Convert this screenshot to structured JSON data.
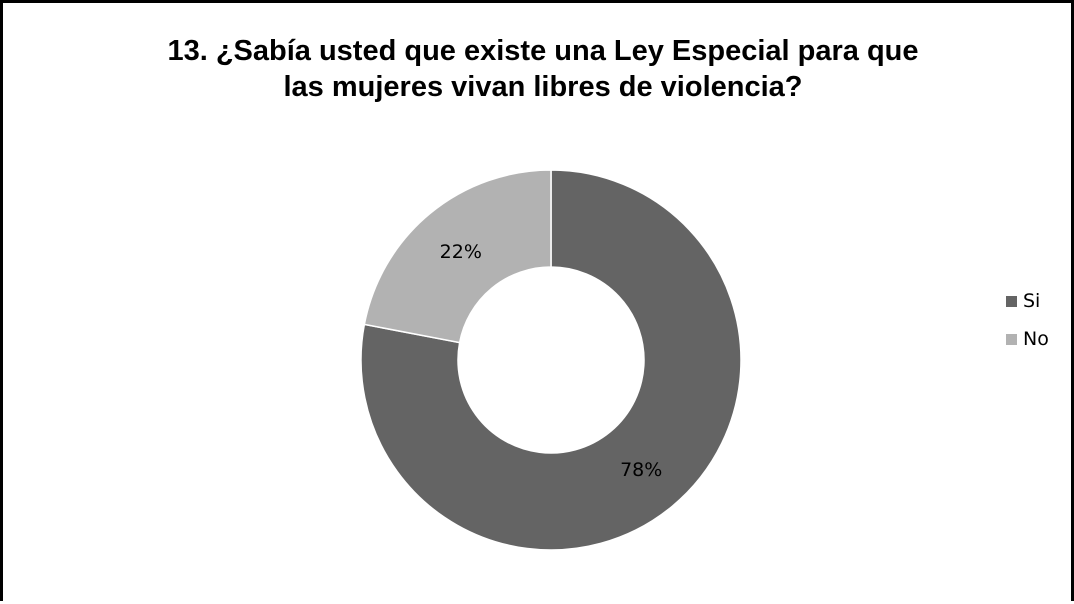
{
  "colors": {
    "si": "#646464",
    "no": "#b2b2b2",
    "border": "#000000"
  },
  "chart_data": {
    "type": "pie",
    "title_lines": [
      "13. ¿Sabía usted que existe una Ley Especial para que",
      "las mujeres vivan libres de violencia?"
    ],
    "categories": [
      "Si",
      "No"
    ],
    "values": [
      78,
      22
    ],
    "data_labels": [
      "78%",
      "22%"
    ],
    "legend_position": "right",
    "donut": true
  }
}
